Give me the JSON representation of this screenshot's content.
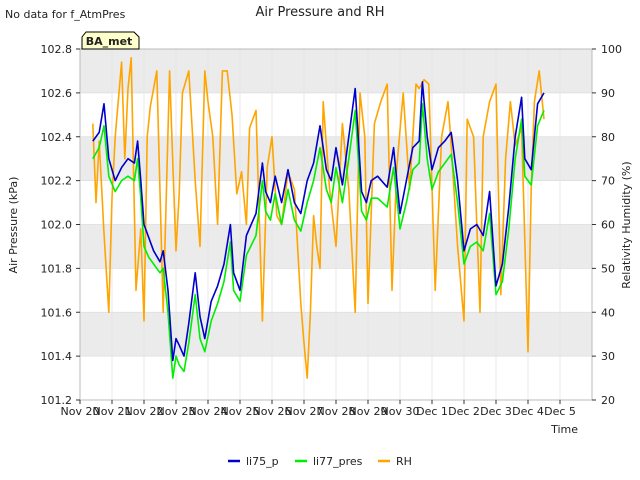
{
  "no_data_note": "No data for f_AtmPres",
  "site_label": "BA_met",
  "colors": {
    "li75_p": "#0000cc",
    "li77_pres": "#00ee00",
    "RH": "#ffa500",
    "band": "#ebebeb",
    "badge_fill": "#ffffcc",
    "badge_text": "#8b0000"
  },
  "chart_data": {
    "type": "line",
    "title": "Air Pressure and RH",
    "xlabel": "Time",
    "ylabel": "Air Pressure (kPa)",
    "y2label": "Relativity Humidity (%)",
    "ylim": [
      101.2,
      102.8
    ],
    "y2lim": [
      20,
      100
    ],
    "xlim": [
      0,
      16
    ],
    "grid": true,
    "legend_position": "bottom-center",
    "x_tick_labels": [
      "Nov 20",
      "Nov 21",
      "Nov 22",
      "Nov 23",
      "Nov 24",
      "Nov 25",
      "Nov 26",
      "Nov 27",
      "Nov 28",
      "Nov 29",
      "Nov 30",
      "Dec 1",
      "Dec 2",
      "Dec 3",
      "Dec 4",
      "Dec 5"
    ],
    "y_ticks": [
      "101.2",
      "101.4",
      "101.6",
      "101.8",
      "102.0",
      "102.2",
      "102.4",
      "102.6",
      "102.8"
    ],
    "y2_ticks": [
      "20",
      "30",
      "40",
      "50",
      "60",
      "70",
      "80",
      "90",
      "100"
    ],
    "series": [
      {
        "name": "li75_p",
        "axis": "left",
        "x": [
          0.4,
          0.6,
          0.75,
          0.9,
          1.1,
          1.3,
          1.5,
          1.7,
          1.8,
          1.9,
          2.0,
          2.15,
          2.3,
          2.5,
          2.6,
          2.75,
          2.9,
          3.0,
          3.1,
          3.25,
          3.4,
          3.6,
          3.75,
          3.9,
          4.1,
          4.3,
          4.5,
          4.7,
          4.8,
          5.0,
          5.2,
          5.5,
          5.7,
          5.8,
          5.95,
          6.1,
          6.3,
          6.5,
          6.7,
          6.9,
          7.1,
          7.3,
          7.5,
          7.7,
          7.85,
          8.0,
          8.2,
          8.4,
          8.6,
          8.8,
          8.95,
          9.1,
          9.3,
          9.6,
          9.8,
          10.0,
          10.2,
          10.4,
          10.6,
          10.7,
          10.85,
          11.0,
          11.2,
          11.4,
          11.6,
          11.8,
          12.0,
          12.2,
          12.4,
          12.6,
          12.8,
          13.0,
          13.2,
          13.4,
          13.6,
          13.8,
          13.9,
          14.1,
          14.3,
          14.5
        ],
        "values": [
          102.38,
          102.42,
          102.55,
          102.3,
          102.2,
          102.26,
          102.3,
          102.28,
          102.38,
          102.2,
          102.0,
          101.94,
          101.88,
          101.83,
          101.88,
          101.7,
          101.38,
          101.48,
          101.45,
          101.4,
          101.55,
          101.78,
          101.58,
          101.48,
          101.65,
          101.72,
          101.82,
          102.0,
          101.78,
          101.7,
          101.95,
          102.05,
          102.28,
          102.15,
          102.1,
          102.22,
          102.1,
          102.25,
          102.1,
          102.05,
          102.2,
          102.28,
          102.45,
          102.25,
          102.2,
          102.35,
          102.18,
          102.4,
          102.62,
          102.15,
          102.1,
          102.2,
          102.22,
          102.17,
          102.35,
          102.05,
          102.2,
          102.35,
          102.38,
          102.65,
          102.4,
          102.25,
          102.35,
          102.38,
          102.42,
          102.2,
          101.88,
          101.98,
          102.0,
          101.95,
          102.15,
          101.72,
          101.82,
          102.08,
          102.4,
          102.58,
          102.3,
          102.25,
          102.55,
          102.6
        ]
      },
      {
        "name": "li77_pres",
        "axis": "left",
        "x": [
          0.4,
          0.6,
          0.75,
          0.9,
          1.1,
          1.3,
          1.5,
          1.7,
          1.8,
          1.9,
          2.0,
          2.15,
          2.3,
          2.5,
          2.6,
          2.75,
          2.9,
          3.0,
          3.1,
          3.25,
          3.4,
          3.6,
          3.75,
          3.9,
          4.1,
          4.3,
          4.5,
          4.7,
          4.8,
          5.0,
          5.2,
          5.5,
          5.7,
          5.8,
          5.95,
          6.1,
          6.3,
          6.5,
          6.7,
          6.9,
          7.1,
          7.3,
          7.5,
          7.7,
          7.85,
          8.0,
          8.2,
          8.4,
          8.6,
          8.8,
          8.95,
          9.1,
          9.3,
          9.6,
          9.8,
          10.0,
          10.2,
          10.4,
          10.6,
          10.7,
          10.85,
          11.0,
          11.2,
          11.4,
          11.6,
          11.8,
          12.0,
          12.2,
          12.4,
          12.6,
          12.8,
          13.0,
          13.2,
          13.4,
          13.6,
          13.8,
          13.9,
          14.1,
          14.3,
          14.5
        ],
        "values": [
          102.3,
          102.35,
          102.45,
          102.22,
          102.15,
          102.2,
          102.22,
          102.2,
          102.3,
          102.12,
          101.9,
          101.85,
          101.82,
          101.78,
          101.8,
          101.6,
          101.3,
          101.4,
          101.36,
          101.33,
          101.46,
          101.68,
          101.48,
          101.42,
          101.56,
          101.64,
          101.74,
          101.92,
          101.7,
          101.65,
          101.86,
          101.95,
          102.2,
          102.06,
          102.02,
          102.14,
          102.0,
          102.16,
          102.02,
          101.97,
          102.1,
          102.2,
          102.35,
          102.16,
          102.1,
          102.26,
          102.1,
          102.3,
          102.52,
          102.06,
          102.02,
          102.12,
          102.12,
          102.08,
          102.26,
          101.98,
          102.1,
          102.25,
          102.28,
          102.55,
          102.3,
          102.16,
          102.24,
          102.28,
          102.32,
          102.1,
          101.82,
          101.9,
          101.92,
          101.88,
          102.05,
          101.68,
          101.74,
          101.98,
          102.3,
          102.48,
          102.22,
          102.18,
          102.45,
          102.52
        ]
      },
      {
        "name": "RH",
        "axis": "right",
        "x": [
          0.4,
          0.5,
          0.6,
          0.75,
          0.9,
          1.0,
          1.1,
          1.3,
          1.4,
          1.5,
          1.6,
          1.75,
          1.9,
          2.0,
          2.1,
          2.2,
          2.4,
          2.6,
          2.8,
          2.9,
          3.0,
          3.1,
          3.2,
          3.4,
          3.6,
          3.75,
          3.9,
          4.0,
          4.15,
          4.3,
          4.45,
          4.6,
          4.75,
          4.9,
          5.05,
          5.2,
          5.3,
          5.5,
          5.7,
          5.85,
          6.0,
          6.15,
          6.3,
          6.5,
          6.7,
          6.9,
          7.0,
          7.1,
          7.2,
          7.3,
          7.4,
          7.5,
          7.6,
          7.8,
          8.0,
          8.2,
          8.4,
          8.6,
          8.75,
          8.9,
          9.0,
          9.2,
          9.4,
          9.6,
          9.75,
          9.9,
          10.1,
          10.3,
          10.5,
          10.6,
          10.75,
          10.9,
          11.1,
          11.3,
          11.5,
          11.6,
          11.8,
          12.0,
          12.1,
          12.3,
          12.5,
          12.6,
          12.8,
          13.0,
          13.15,
          13.3,
          13.45,
          13.6,
          13.8,
          14.0,
          14.1,
          14.2,
          14.35,
          14.5
        ],
        "values": [
          83,
          65,
          79,
          58,
          40,
          66,
          80,
          97,
          75,
          91,
          98,
          45,
          59,
          38,
          80,
          87,
          95,
          40,
          95,
          74,
          54,
          67,
          90,
          95,
          70,
          55,
          95,
          88,
          80,
          60,
          95,
          95,
          85,
          67,
          72,
          60,
          82,
          86,
          38,
          73,
          80,
          62,
          60,
          72,
          68,
          42,
          33,
          25,
          40,
          62,
          55,
          50,
          88,
          68,
          55,
          83,
          68,
          40,
          90,
          80,
          42,
          83,
          88,
          92,
          45,
          73,
          90,
          68,
          92,
          91,
          93,
          92,
          45,
          80,
          88,
          78,
          55,
          38,
          84,
          80,
          40,
          80,
          88,
          92,
          44,
          75,
          88,
          78,
          82,
          31,
          68,
          88,
          95,
          84
        ]
      }
    ]
  }
}
